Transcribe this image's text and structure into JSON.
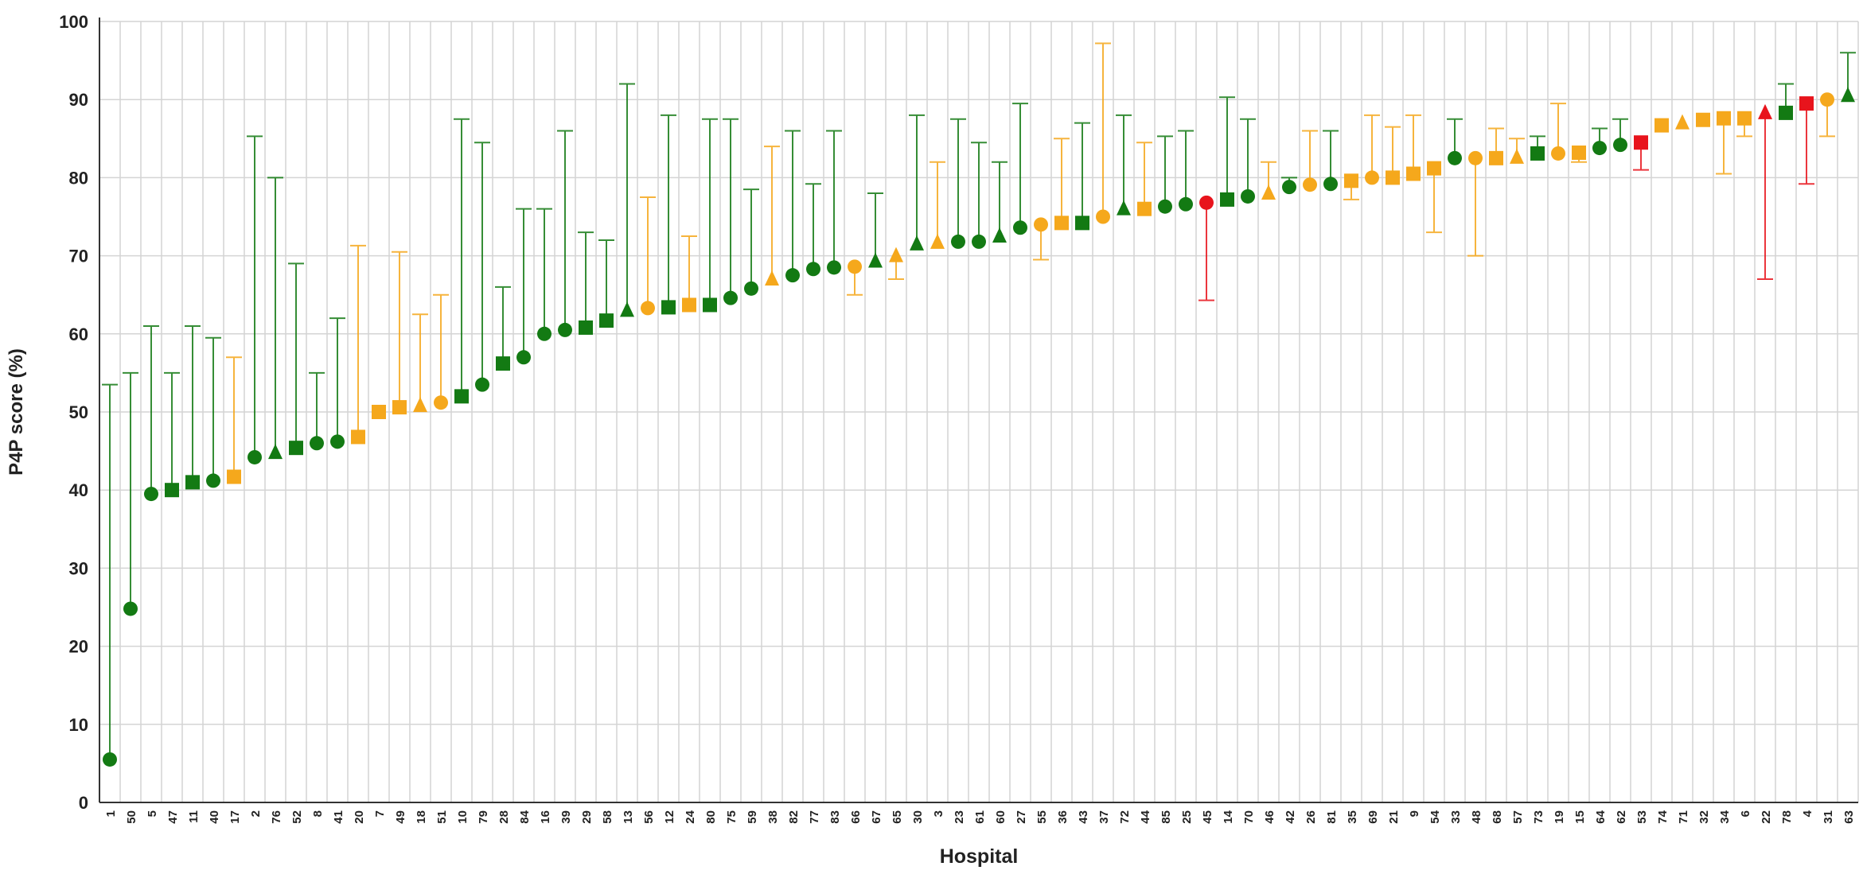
{
  "chart_data": {
    "type": "errorbar",
    "x_label": "Hospital",
    "y_label": "P4P score (%)",
    "categories": [
      "1",
      "50",
      "5",
      "47",
      "11",
      "40",
      "17",
      "2",
      "76",
      "52",
      "8",
      "41",
      "20",
      "7",
      "49",
      "18",
      "51",
      "10",
      "79",
      "28",
      "84",
      "16",
      "39",
      "29",
      "58",
      "13",
      "56",
      "12",
      "24",
      "80",
      "75",
      "59",
      "38",
      "82",
      "77",
      "83",
      "66",
      "67",
      "65",
      "30",
      "3",
      "23",
      "61",
      "60",
      "27",
      "55",
      "36",
      "43",
      "37",
      "72",
      "44",
      "85",
      "25",
      "45",
      "14",
      "70",
      "46",
      "42",
      "26",
      "81",
      "35",
      "69",
      "21",
      "9",
      "54",
      "33",
      "48",
      "68",
      "57",
      "73",
      "19",
      "15",
      "64",
      "62",
      "53",
      "74",
      "71",
      "32",
      "34",
      "6",
      "22",
      "78",
      "4",
      "31",
      "63"
    ],
    "values": [
      5.5,
      24.8,
      39.5,
      40,
      41,
      41.2,
      41.7,
      44.2,
      44.8,
      45.4,
      46,
      46.2,
      46.8,
      50,
      50.6,
      50.8,
      51.2,
      52,
      53.5,
      56.2,
      57,
      60,
      60.5,
      60.8,
      61.7,
      63,
      63.3,
      63.4,
      63.7,
      63.7,
      64.6,
      65.8,
      67,
      67.5,
      68.3,
      68.5,
      68.6,
      69.3,
      70,
      71.5,
      71.7,
      71.8,
      71.8,
      72.5,
      73.6,
      74,
      74.2,
      74.2,
      75,
      76,
      76,
      76.3,
      76.6,
      76.8,
      77.2,
      77.6,
      78,
      78.8,
      79.1,
      79.2,
      79.6,
      80,
      80,
      80.5,
      81.2,
      82.5,
      82.5,
      82.5,
      82.6,
      83.1,
      83.1,
      83.2,
      83.8,
      84.2,
      84.5,
      86.7,
      87,
      87.4,
      87.6,
      87.6,
      88.3,
      88.3,
      89.5,
      90,
      90.5
    ],
    "bar_ends": [
      53.5,
      55,
      61,
      55,
      61,
      59.5,
      57,
      85.3,
      80,
      69,
      55,
      62,
      71.3,
      null,
      70.5,
      62.5,
      65,
      87.5,
      84.5,
      66,
      76,
      76,
      86,
      73,
      72,
      92,
      77.5,
      88,
      72.5,
      87.5,
      87.5,
      78.5,
      84,
      86,
      79.2,
      86,
      65,
      78,
      67,
      88,
      82,
      87.5,
      84.5,
      82,
      89.5,
      69.5,
      85,
      87,
      97.2,
      88,
      84.5,
      85.3,
      86,
      64.3,
      90.3,
      87.5,
      82,
      80,
      86,
      86,
      77.2,
      88,
      86.5,
      88,
      73,
      87.5,
      70,
      86.3,
      85,
      85.3,
      89.5,
      82,
      86.3,
      87.5,
      81,
      null,
      null,
      null,
      80.5,
      85.3,
      67,
      92,
      79.2,
      85.3,
      96
    ],
    "markers": [
      "circle",
      "circle",
      "circle",
      "square",
      "square",
      "circle",
      "square",
      "circle",
      "triangle",
      "square",
      "circle",
      "circle",
      "square",
      "square",
      "square",
      "triangle",
      "circle",
      "square",
      "circle",
      "square",
      "circle",
      "circle",
      "circle",
      "square",
      "square",
      "triangle",
      "circle",
      "square",
      "square",
      "square",
      "circle",
      "circle",
      "triangle",
      "circle",
      "circle",
      "circle",
      "circle",
      "triangle",
      "triangle",
      "triangle",
      "triangle",
      "circle",
      "circle",
      "triangle",
      "circle",
      "circle",
      "square",
      "square",
      "circle",
      "triangle",
      "square",
      "circle",
      "circle",
      "circle",
      "square",
      "circle",
      "triangle",
      "circle",
      "circle",
      "circle",
      "square",
      "circle",
      "square",
      "square",
      "square",
      "circle",
      "circle",
      "square",
      "triangle",
      "square",
      "circle",
      "square",
      "circle",
      "circle",
      "square",
      "square",
      "triangle",
      "square",
      "square",
      "square",
      "triangle",
      "square",
      "square",
      "circle",
      "triangle"
    ],
    "colors": [
      "#137a13",
      "#137a13",
      "#137a13",
      "#137a13",
      "#137a13",
      "#137a13",
      "#f5a81c",
      "#137a13",
      "#137a13",
      "#137a13",
      "#137a13",
      "#137a13",
      "#f5a81c",
      "#f5a81c",
      "#f5a81c",
      "#f5a81c",
      "#f5a81c",
      "#137a13",
      "#137a13",
      "#137a13",
      "#137a13",
      "#137a13",
      "#137a13",
      "#137a13",
      "#137a13",
      "#137a13",
      "#f5a81c",
      "#137a13",
      "#f5a81c",
      "#137a13",
      "#137a13",
      "#137a13",
      "#f5a81c",
      "#137a13",
      "#137a13",
      "#137a13",
      "#f5a81c",
      "#137a13",
      "#f5a81c",
      "#137a13",
      "#f5a81c",
      "#137a13",
      "#137a13",
      "#137a13",
      "#137a13",
      "#f5a81c",
      "#f5a81c",
      "#137a13",
      "#f5a81c",
      "#137a13",
      "#f5a81c",
      "#137a13",
      "#137a13",
      "#e8141c",
      "#137a13",
      "#137a13",
      "#f5a81c",
      "#137a13",
      "#f5a81c",
      "#137a13",
      "#f5a81c",
      "#f5a81c",
      "#f5a81c",
      "#f5a81c",
      "#f5a81c",
      "#137a13",
      "#f5a81c",
      "#f5a81c",
      "#f5a81c",
      "#137a13",
      "#f5a81c",
      "#f5a81c",
      "#137a13",
      "#137a13",
      "#e8141c",
      "#f5a81c",
      "#f5a81c",
      "#f5a81c",
      "#f5a81c",
      "#f5a81c",
      "#e8141c",
      "#137a13",
      "#e8141c",
      "#f5a81c",
      "#137a13"
    ],
    "ylim": [
      0,
      100
    ],
    "yticks": [
      0,
      10,
      20,
      30,
      40,
      50,
      60,
      70,
      80,
      90,
      100
    ],
    "grid": true
  }
}
